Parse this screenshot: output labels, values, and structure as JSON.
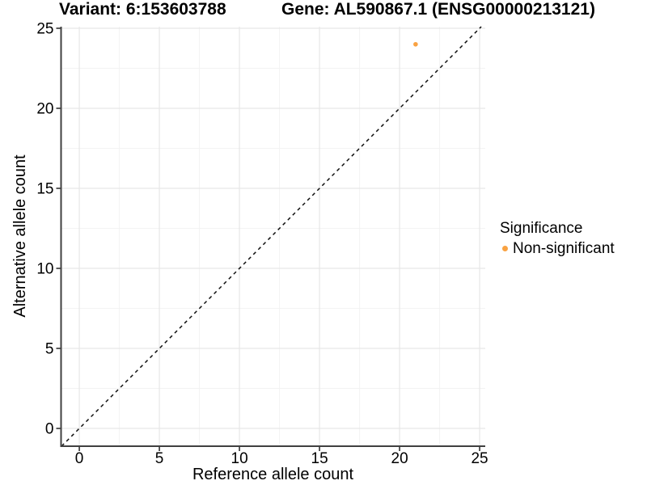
{
  "header": {
    "variant_title": "Variant: 6:153603788",
    "gene_title": "Gene: AL590867.1 (ENSG00000213121)"
  },
  "chart_data": {
    "type": "scatter",
    "xlabel": "Reference allele count",
    "ylabel": "Alternative allele count",
    "xlim": [
      -1.14,
      25.35
    ],
    "ylim": [
      -1.11,
      25.1
    ],
    "xticks": [
      0,
      5,
      10,
      15,
      20,
      25
    ],
    "yticks": [
      0,
      5,
      10,
      15,
      20,
      25
    ],
    "grid": "major+minor",
    "points": [
      {
        "x": 21,
        "y": 24,
        "series": "Non-significant"
      }
    ],
    "identity_line": {
      "type": "y=x",
      "style": "dashed"
    },
    "legend": {
      "title": "Significance",
      "position": "right",
      "items": [
        {
          "label": "Non-significant",
          "color": "#F9A242"
        }
      ]
    }
  },
  "colors": {
    "background": "#FFFFFF",
    "point": "#F9A242",
    "grid_major": "#E7E7E7",
    "grid_minor": "#F3F3F3",
    "axis_line": "#404040",
    "tick": "#333333",
    "identity_line": "#111111",
    "text": "#000000"
  }
}
